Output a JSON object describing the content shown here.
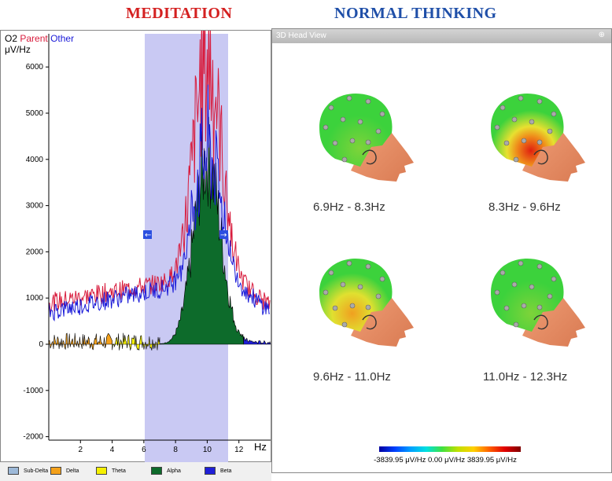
{
  "titles": {
    "left": "MEDITATION",
    "right": "NORMAL THINKING"
  },
  "spectrum": {
    "channel": "O2",
    "parent": "Parent",
    "other": "Other",
    "unit": "μV/Hz",
    "x_unit": "Hz",
    "y_ticks": [
      "6000",
      "5000",
      "4000",
      "3000",
      "2000",
      "1000",
      "0",
      "-1000",
      "-2000"
    ],
    "x_ticks": [
      "2",
      "4",
      "6",
      "8",
      "10",
      "12"
    ],
    "selection_hz": [
      6.9,
      12.3
    ],
    "colors": {
      "parent": "#d81b3c",
      "other": "#1a1ad8",
      "band": "#c9c9f3"
    }
  },
  "legend": [
    {
      "label": "Sub-Delta",
      "color": "#9db9d8"
    },
    {
      "label": "Delta",
      "color": "#f4a11a"
    },
    {
      "label": "Theta",
      "color": "#f5f000"
    },
    {
      "label": "Alpha",
      "color": "#0d6b2b"
    },
    {
      "label": "Beta",
      "color": "#1f1fd8"
    }
  ],
  "head_view": {
    "title": "3D Head View",
    "pin": "⊕",
    "heads": [
      {
        "range": "6.9Hz - 8.3Hz",
        "activation": "low"
      },
      {
        "range": "8.3Hz - 9.6Hz",
        "activation": "high"
      },
      {
        "range": "9.6Hz - 11.0Hz",
        "activation": "medium"
      },
      {
        "range": "11.0Hz - 12.3Hz",
        "activation": "low"
      }
    ],
    "scale": {
      "min": "-3839.95 μV/Hz",
      "mid": "0.00 μV/Hz",
      "max": "3839.95 μV/Hz"
    }
  }
}
